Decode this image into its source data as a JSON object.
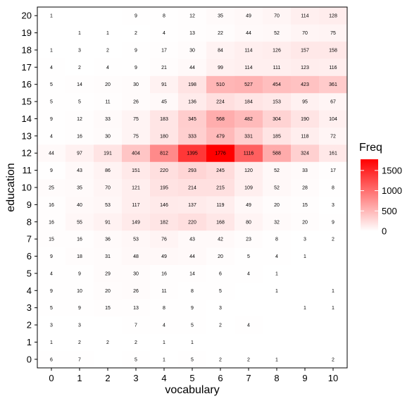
{
  "chart_data": {
    "type": "heatmap",
    "title": "",
    "xlabel": "vocabulary",
    "ylabel": "education",
    "x_categories": [
      "0",
      "1",
      "2",
      "3",
      "4",
      "5",
      "6",
      "7",
      "8",
      "9",
      "10"
    ],
    "y_categories": [
      "0",
      "1",
      "2",
      "3",
      "4",
      "5",
      "6",
      "7",
      "8",
      "9",
      "10",
      "11",
      "12",
      "13",
      "14",
      "15",
      "16",
      "17",
      "18",
      "19",
      "20"
    ],
    "color_low": "#ffffff",
    "color_high": "#ff0000",
    "value_range": [
      0,
      1776
    ],
    "legend": {
      "title": "Freq",
      "ticks": [
        0,
        500,
        1000,
        1500
      ],
      "position": "right"
    },
    "grid": false,
    "cells": [
      [
        6,
        7,
        null,
        5,
        1,
        5,
        2,
        2,
        1,
        null,
        2
      ],
      [
        1,
        2,
        2,
        2,
        1,
        1,
        null,
        null,
        null,
        null,
        null
      ],
      [
        3,
        3,
        null,
        7,
        4,
        5,
        2,
        4,
        null,
        null,
        null
      ],
      [
        5,
        9,
        15,
        13,
        8,
        9,
        3,
        null,
        null,
        1,
        1
      ],
      [
        9,
        10,
        20,
        26,
        11,
        8,
        5,
        null,
        1,
        null,
        1
      ],
      [
        4,
        9,
        29,
        30,
        16,
        14,
        6,
        4,
        1,
        null,
        null
      ],
      [
        9,
        18,
        31,
        48,
        49,
        44,
        20,
        5,
        4,
        1,
        null
      ],
      [
        15,
        16,
        36,
        53,
        76,
        43,
        42,
        23,
        8,
        3,
        2
      ],
      [
        16,
        55,
        91,
        149,
        182,
        220,
        168,
        80,
        32,
        20,
        9
      ],
      [
        16,
        40,
        53,
        117,
        146,
        137,
        119,
        49,
        20,
        15,
        3
      ],
      [
        25,
        35,
        70,
        121,
        195,
        214,
        215,
        109,
        52,
        28,
        8
      ],
      [
        9,
        43,
        86,
        151,
        220,
        293,
        245,
        120,
        52,
        33,
        17
      ],
      [
        44,
        97,
        191,
        404,
        812,
        1395,
        1776,
        1116,
        588,
        324,
        161
      ],
      [
        4,
        16,
        30,
        75,
        180,
        333,
        479,
        331,
        185,
        118,
        72
      ],
      [
        9,
        12,
        33,
        75,
        183,
        345,
        568,
        482,
        304,
        190,
        104
      ],
      [
        5,
        5,
        11,
        26,
        45,
        136,
        224,
        184,
        153,
        95,
        67
      ],
      [
        5,
        14,
        20,
        30,
        91,
        198,
        510,
        527,
        454,
        423,
        361
      ],
      [
        4,
        2,
        4,
        9,
        21,
        44,
        99,
        114,
        111,
        123,
        116
      ],
      [
        1,
        3,
        2,
        9,
        17,
        30,
        84,
        114,
        126,
        157,
        158
      ],
      [
        null,
        1,
        1,
        2,
        4,
        13,
        22,
        44,
        52,
        70,
        75
      ],
      [
        1,
        null,
        null,
        9,
        8,
        12,
        35,
        49,
        70,
        114,
        128
      ]
    ]
  }
}
